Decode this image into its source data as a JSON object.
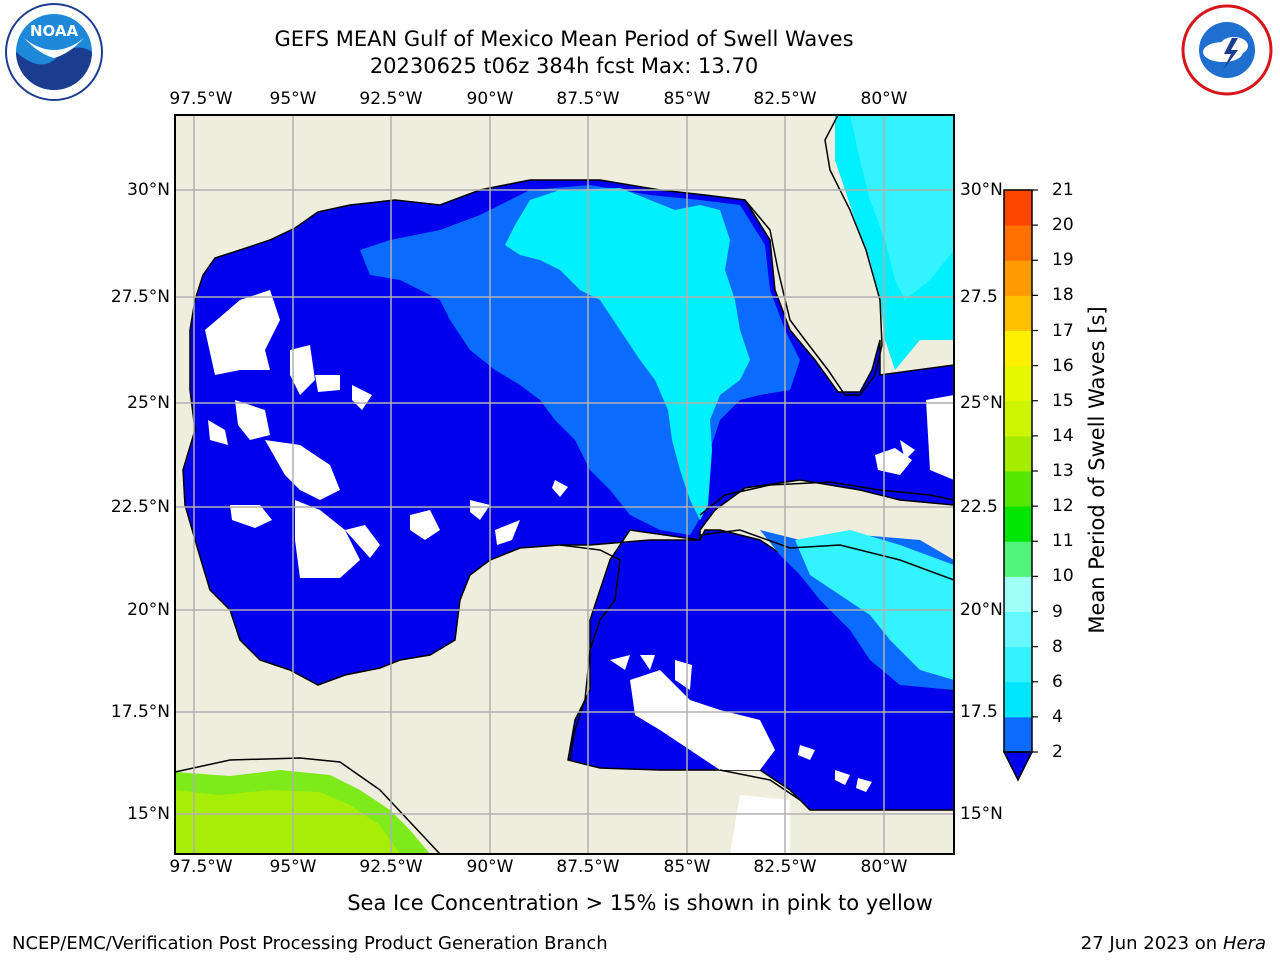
{
  "title_line1": "GEFS MEAN Gulf of Mexico Mean Period of Swell Waves",
  "title_line2": "20230625 t06z 384h fcst   Max: 13.70",
  "caption": "Sea Ice Concentration > 15% is shown in pink to yellow",
  "footer_left": "NCEP/EMC/Verification Post Processing Product Generation Branch",
  "footer_right_date": "27 Jun 2023 on",
  "footer_right_host": "Hera",
  "logos": {
    "left": "noaa-logo",
    "right": "nws-logo"
  },
  "map": {
    "lon_labels": [
      "97.5°W",
      "95°W",
      "92.5°W",
      "90°W",
      "87.5°W",
      "85°W",
      "82.5°W",
      "80°W"
    ],
    "lat_labels_left": [
      "30°N",
      "27.5°N",
      "25°N",
      "22.5°N",
      "20°N",
      "17.5°N",
      "15°N"
    ],
    "lat_labels_right": [
      "30°N",
      "27.5",
      "25°N",
      "22.5",
      "20°N",
      "17.5",
      "15°N"
    ],
    "land_color": "#efedde",
    "grid_color": "#b0b0b0"
  },
  "colorbar": {
    "title": "Mean Period of Swell Waves [s]",
    "ticks": [
      "2",
      "4",
      "6",
      "8",
      "9",
      "10",
      "11",
      "12",
      "13",
      "14",
      "15",
      "16",
      "17",
      "18",
      "19",
      "20",
      "21"
    ],
    "colors": [
      "#0a6cff",
      "#00e6ff",
      "#33f3ff",
      "#66f8ff",
      "#a0fff8",
      "#52f57a",
      "#00e600",
      "#56e600",
      "#a6ec00",
      "#cef500",
      "#e6f800",
      "#fff000",
      "#ffc000",
      "#ff9a00",
      "#ff7000",
      "#ff4600",
      "#ff1400"
    ],
    "extend_color": "#0000ee"
  }
}
